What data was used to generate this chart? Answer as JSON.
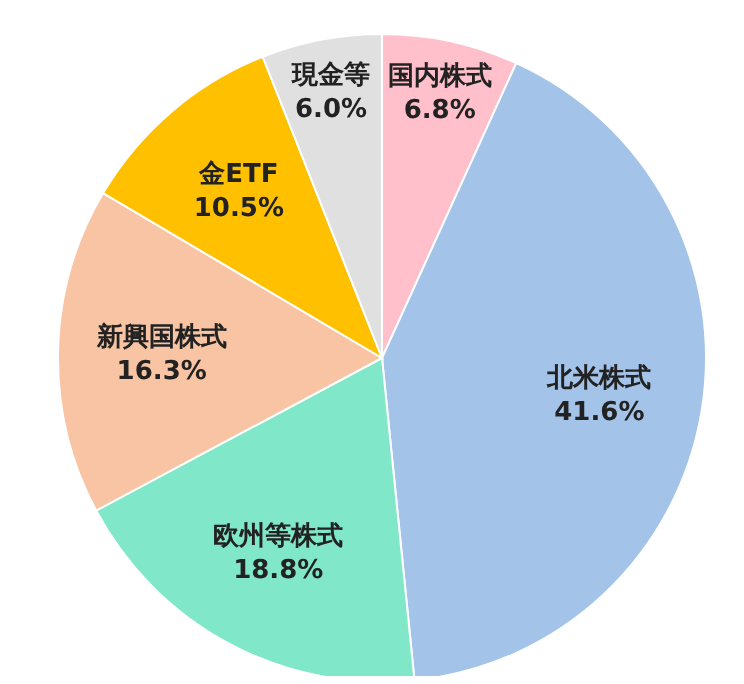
{
  "chart_data": {
    "type": "pie",
    "categories": [
      "国内株式",
      "北米株式",
      "欧州等株式",
      "新興国株式",
      "金ETF",
      "現金等"
    ],
    "values": [
      6.8,
      41.6,
      18.8,
      16.3,
      10.5,
      6.0
    ],
    "value_labels": [
      "6.8%",
      "41.6%",
      "18.8%",
      "16.3%",
      "10.5%",
      "6.0%"
    ],
    "colors": [
      "#ffc0cb",
      "#a3c4e8",
      "#80e8c8",
      "#f8c4a4",
      "#ffc000",
      "#e0e0e0"
    ],
    "legend": false
  }
}
